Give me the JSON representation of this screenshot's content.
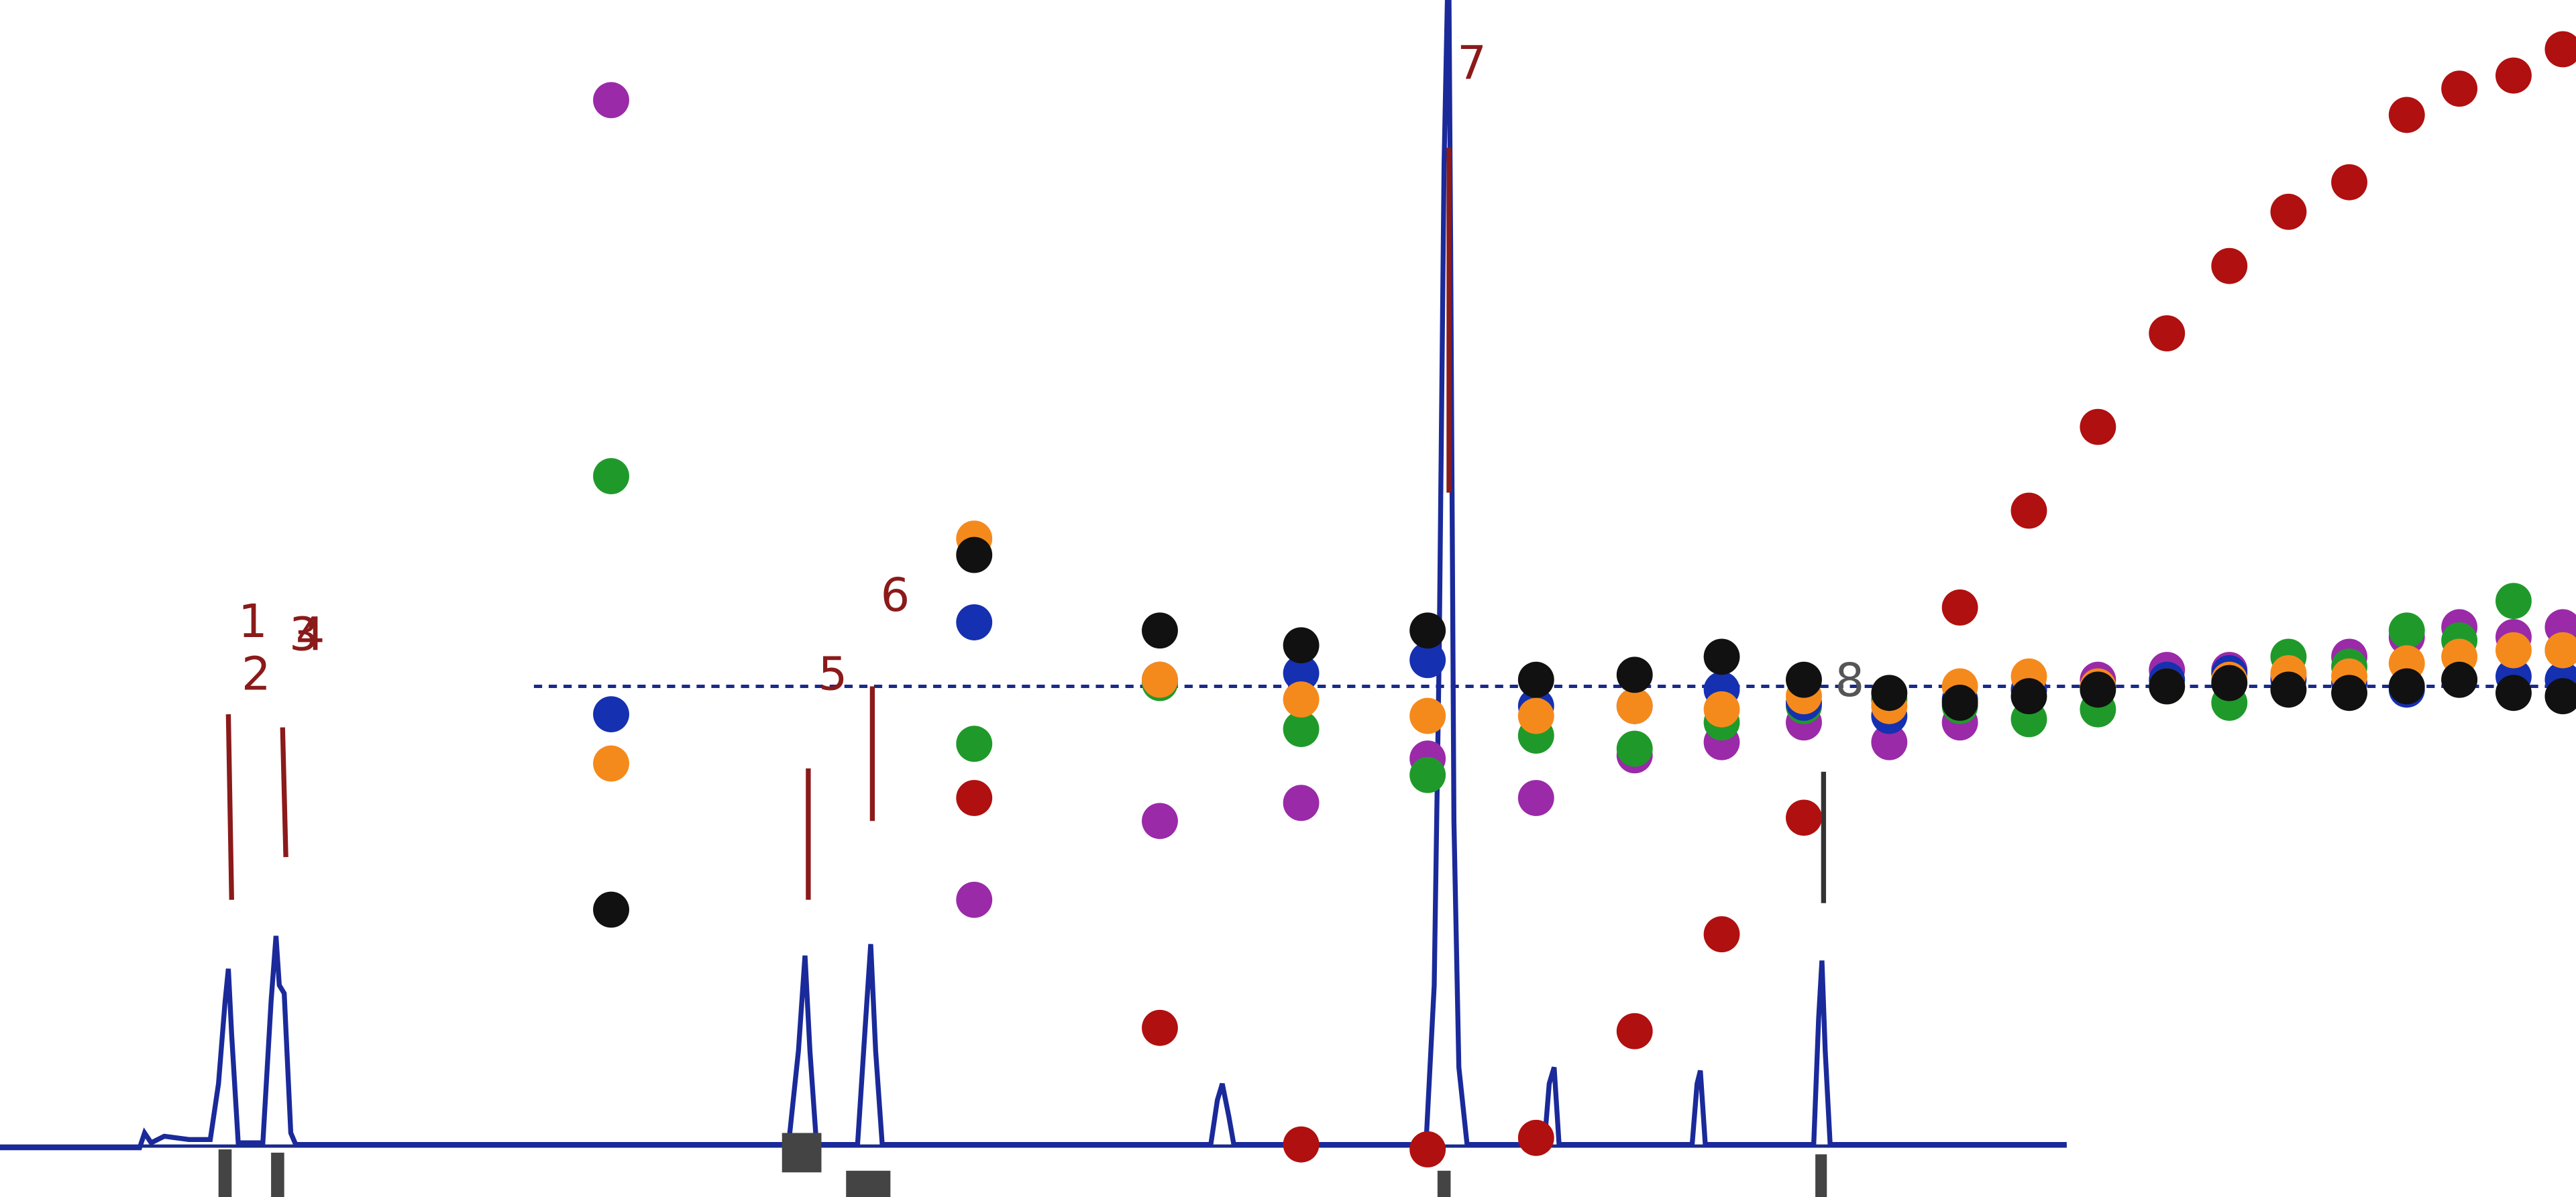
{
  "chart_data": {
    "type": "scatter",
    "annotations": [
      "1",
      "2",
      "3",
      "4",
      "5",
      "6",
      "7",
      "8"
    ],
    "xlim": [
      0,
      1568
    ],
    "ylim": [
      0,
      729
    ],
    "x": [
      372,
      593,
      706,
      792,
      869,
      935,
      995,
      1048,
      1098,
      1150,
      1193,
      1235,
      1277,
      1319,
      1357,
      1393,
      1430,
      1465,
      1497,
      1530,
      1560
    ],
    "series": [
      {
        "color": "#b01010",
        "values": [
          null,
          243,
          103,
          32,
          29,
          36,
          101,
          160,
          231,
          null,
          359,
          418,
          469,
          526,
          567,
          600,
          618,
          659,
          675,
          683,
          699
        ]
      },
      {
        "color": "#9a2aa8",
        "values": [
          668,
          181,
          229,
          240,
          267,
          243,
          269,
          277,
          289,
          277,
          289,
          309,
          315,
          321,
          321,
          317,
          329,
          341,
          347,
          341,
          347
        ]
      },
      {
        "color": "#1f9a2a",
        "values": [
          439,
          276,
          313,
          285,
          257,
          281,
          273,
          289,
          299,
          303,
          299,
          291,
          297,
          311,
          301,
          329,
          323,
          345,
          339,
          363,
          333
        ]
      },
      {
        "color": "#1530b0",
        "values": [
          294,
          350,
          315,
          319,
          327,
          299,
          299,
          309,
          301,
          293,
          303,
          309,
          311,
          315,
          319,
          315,
          313,
          309,
          315,
          317,
          315
        ]
      },
      {
        "color": "#f58a1c",
        "values": [
          264,
          401,
          315,
          303,
          293,
          293,
          299,
          297,
          305,
          299,
          311,
          317,
          311,
          311,
          315,
          319,
          317,
          325,
          329,
          333,
          333
        ]
      },
      {
        "color": "#111111",
        "values": [
          175,
          391,
          345,
          336,
          345,
          315,
          318,
          329,
          315,
          307,
          301,
          305,
          309,
          311,
          313,
          309,
          307,
          311,
          315,
          307,
          305
        ]
      }
    ]
  }
}
